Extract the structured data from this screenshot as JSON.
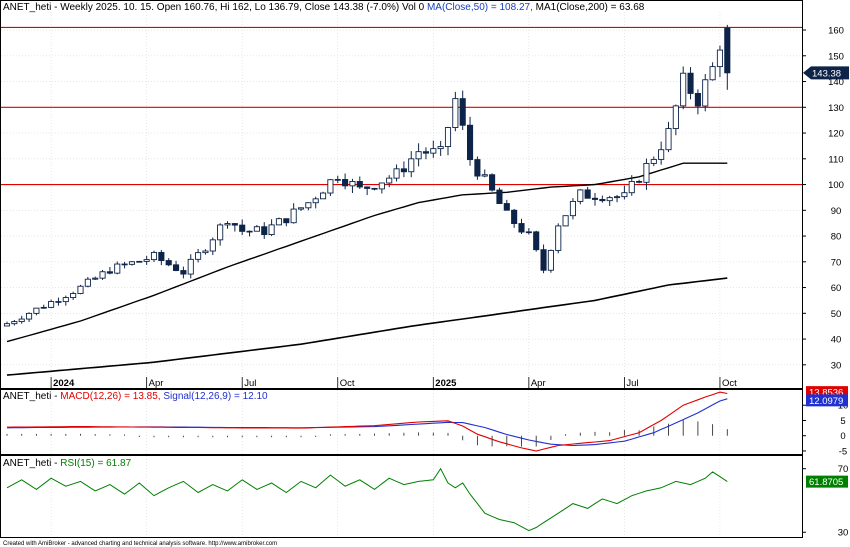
{
  "header": {
    "price_line": "ANET_heti - Weekly 2025. 10. 15. Open 160.76, Hi 162, Lo 136.79, Close 143.38 (-7.0%) Vol 0",
    "ma50_text": "MA(Close,50) = 108.27,",
    "ma200_text": "MA1(Close,200) = 63.68"
  },
  "macd_header": {
    "prefix": "ANET_heti - ",
    "macd_text": "MACD(12,26) = 13.85,",
    "signal_text": "Signal(12,26,9) = 12.10"
  },
  "rsi_header": {
    "prefix": "ANET_heti - ",
    "rsi_text": "RSI(15) = 61.87"
  },
  "footer": "Created with AmiBroker - advanced charting and technical analysis software. http://www.amibroker.com",
  "price_tag": "143.38",
  "macd_tag": "13.8536",
  "signal_tag": "12.0979",
  "rsi_tag": "61.8705",
  "colors": {
    "candle": "#0d2448",
    "ma": "#000000",
    "hline": "#e00000",
    "macd": "#e00000",
    "signal": "#2030d0",
    "rsi": "#008000",
    "grid": "#d8d8d8"
  },
  "chart_data": [
    {
      "type": "candlestick",
      "title": "ANET_heti - Weekly",
      "y_ticks": [
        30,
        40,
        50,
        60,
        70,
        80,
        90,
        100,
        110,
        120,
        130,
        140,
        150,
        160
      ],
      "ylim": [
        21,
        167
      ],
      "x_labels": [
        "2024",
        "Apr",
        "Jul",
        "Oct",
        "2025",
        "Apr",
        "Jul",
        "Oct"
      ],
      "x_label_index": [
        6,
        19,
        32,
        45,
        58,
        71,
        84,
        97
      ],
      "horizontal_lines": [
        100,
        130,
        161
      ],
      "anchors": [
        [
          0,
          46
        ],
        [
          5,
          53
        ],
        [
          10,
          60
        ],
        [
          14,
          67
        ],
        [
          20,
          72
        ],
        [
          24,
          66
        ],
        [
          27,
          76
        ],
        [
          30,
          87
        ],
        [
          32,
          82
        ],
        [
          35,
          82
        ],
        [
          38,
          87
        ],
        [
          41,
          93
        ],
        [
          45,
          104
        ],
        [
          48,
          98
        ],
        [
          53,
          104
        ],
        [
          56,
          113
        ],
        [
          59,
          112
        ],
        [
          61,
          133
        ],
        [
          63,
          110
        ],
        [
          66,
          97
        ],
        [
          68,
          88
        ],
        [
          71,
          80
        ],
        [
          73,
          67
        ],
        [
          75,
          85
        ],
        [
          78,
          96
        ],
        [
          81,
          96
        ],
        [
          84,
          95
        ],
        [
          86,
          103
        ],
        [
          88,
          111
        ],
        [
          90,
          120
        ],
        [
          92,
          140
        ],
        [
          94,
          133
        ],
        [
          96,
          145
        ],
        [
          97,
          155
        ],
        [
          98,
          143.38
        ]
      ],
      "last_candle": {
        "open": 160.76,
        "high": 162,
        "low": 136.79,
        "close": 143.38
      },
      "ma50": [
        [
          0,
          39
        ],
        [
          10,
          47
        ],
        [
          20,
          57
        ],
        [
          30,
          68
        ],
        [
          40,
          78
        ],
        [
          50,
          88
        ],
        [
          56,
          93
        ],
        [
          62,
          96
        ],
        [
          68,
          97
        ],
        [
          74,
          99
        ],
        [
          80,
          100
        ],
        [
          86,
          103
        ],
        [
          92,
          108.27
        ]
      ],
      "ma200": [
        [
          0,
          26
        ],
        [
          20,
          31
        ],
        [
          40,
          38
        ],
        [
          55,
          45
        ],
        [
          60,
          47
        ],
        [
          70,
          51
        ],
        [
          80,
          55
        ],
        [
          90,
          61
        ],
        [
          98,
          63.68
        ]
      ]
    },
    {
      "type": "line",
      "title": "MACD",
      "y_ticks": [
        -5,
        0,
        5,
        10
      ],
      "ylim": [
        -6,
        15
      ],
      "series": [
        {
          "name": "MACD(12,26)",
          "anchors": [
            [
              0,
              2.8
            ],
            [
              10,
              3.0
            ],
            [
              20,
              2.8
            ],
            [
              30,
              2.6
            ],
            [
              40,
              2.5
            ],
            [
              50,
              3.3
            ],
            [
              56,
              4.5
            ],
            [
              60,
              4.9
            ],
            [
              62,
              3.2
            ],
            [
              64,
              0.5
            ],
            [
              67,
              -2.0
            ],
            [
              70,
              -4.0
            ],
            [
              72,
              -5.0
            ],
            [
              75,
              -3.2
            ],
            [
              78,
              -2.5
            ],
            [
              82,
              -1.6
            ],
            [
              86,
              1.0
            ],
            [
              89,
              5.0
            ],
            [
              92,
              10.0
            ],
            [
              95,
              12.7
            ],
            [
              97,
              14.3
            ],
            [
              98,
              13.85
            ]
          ]
        },
        {
          "name": "Signal(12,26,9)",
          "anchors": [
            [
              0,
              2.6
            ],
            [
              10,
              2.8
            ],
            [
              20,
              2.9
            ],
            [
              30,
              2.7
            ],
            [
              40,
              2.6
            ],
            [
              50,
              3.0
            ],
            [
              56,
              3.8
            ],
            [
              60,
              4.4
            ],
            [
              62,
              4.3
            ],
            [
              65,
              2.7
            ],
            [
              68,
              0.4
            ],
            [
              71,
              -1.4
            ],
            [
              74,
              -2.8
            ],
            [
              77,
              -3.2
            ],
            [
              80,
              -2.9
            ],
            [
              84,
              -1.8
            ],
            [
              88,
              1.0
            ],
            [
              91,
              4.2
            ],
            [
              94,
              7.5
            ],
            [
              97,
              11.4
            ],
            [
              98,
              12.1
            ]
          ]
        }
      ]
    },
    {
      "type": "line",
      "title": "RSI",
      "y_ticks": [
        30,
        70
      ],
      "ylim": [
        27,
        78
      ],
      "series": [
        {
          "name": "RSI(15)",
          "anchors": [
            [
              0,
              58
            ],
            [
              2,
              63
            ],
            [
              4,
              57
            ],
            [
              6,
              64
            ],
            [
              8,
              59
            ],
            [
              10,
              62
            ],
            [
              12,
              56
            ],
            [
              14,
              60
            ],
            [
              16,
              54
            ],
            [
              18,
              61
            ],
            [
              20,
              53
            ],
            [
              22,
              58
            ],
            [
              24,
              62
            ],
            [
              26,
              55
            ],
            [
              28,
              60
            ],
            [
              30,
              56
            ],
            [
              32,
              63
            ],
            [
              34,
              57
            ],
            [
              36,
              61
            ],
            [
              38,
              55
            ],
            [
              40,
              62
            ],
            [
              42,
              58
            ],
            [
              44,
              66
            ],
            [
              46,
              59
            ],
            [
              48,
              63
            ],
            [
              50,
              57
            ],
            [
              52,
              64
            ],
            [
              54,
              60
            ],
            [
              56,
              62
            ],
            [
              58,
              63
            ],
            [
              59,
              70
            ],
            [
              60,
              61
            ],
            [
              61,
              58
            ],
            [
              62,
              61
            ],
            [
              63,
              54
            ],
            [
              65,
              42
            ],
            [
              67,
              38
            ],
            [
              69,
              36
            ],
            [
              71,
              31
            ],
            [
              72,
              33
            ],
            [
              73,
              36
            ],
            [
              75,
              42
            ],
            [
              77,
              48
            ],
            [
              79,
              45
            ],
            [
              81,
              51
            ],
            [
              83,
              48
            ],
            [
              85,
              53
            ],
            [
              87,
              56
            ],
            [
              89,
              58
            ],
            [
              91,
              62
            ],
            [
              93,
              60
            ],
            [
              95,
              64
            ],
            [
              96,
              68
            ],
            [
              97,
              65
            ],
            [
              98,
              61.87
            ]
          ]
        }
      ]
    }
  ]
}
